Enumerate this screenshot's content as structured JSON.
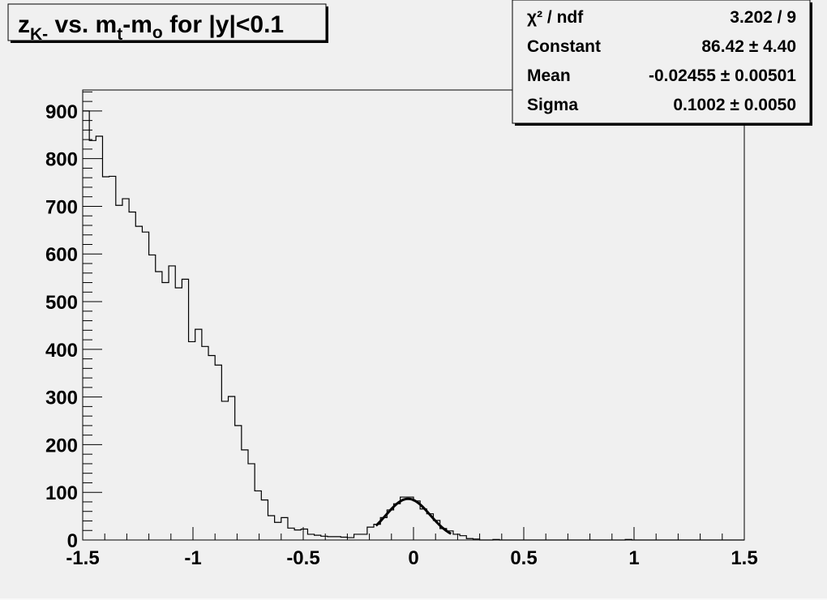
{
  "chart_data": {
    "type": "bar",
    "histogram_style": "step",
    "title": {
      "base1": "z",
      "sub1": "K-",
      "mid": " vs. m",
      "sub2": "t",
      "mid2": "-m",
      "sub3": "o",
      "tail": " for |y|<0.1"
    },
    "xlim": [
      -1.5,
      1.5
    ],
    "ylim": [
      0,
      944
    ],
    "bin_width": 0.03,
    "x_ticks": [
      "-1.5",
      "-1",
      "-0.5",
      "0",
      "0.5",
      "1",
      "1.5"
    ],
    "y_ticks": [
      "0",
      "100",
      "200",
      "300",
      "400",
      "500",
      "600",
      "700",
      "800",
      "900"
    ],
    "values": [
      900,
      838,
      847,
      762,
      763,
      702,
      716,
      688,
      658,
      646,
      598,
      563,
      540,
      575,
      529,
      547,
      416,
      442,
      406,
      387,
      367,
      291,
      301,
      240,
      189,
      160,
      103,
      84,
      51,
      37,
      47,
      25,
      21,
      23,
      12,
      10,
      8,
      7,
      7,
      6,
      5,
      12,
      12,
      27,
      33,
      47,
      63,
      76,
      90,
      90,
      82,
      65,
      55,
      41,
      24,
      19,
      12,
      9,
      3,
      2,
      0,
      0,
      1,
      0,
      0,
      0,
      0,
      0,
      0,
      0,
      0,
      0,
      0,
      0,
      0,
      0,
      0,
      0,
      0,
      0,
      0,
      0,
      1,
      0,
      0,
      0,
      0,
      0,
      0,
      0,
      0,
      0,
      0,
      0,
      0,
      0,
      0,
      0,
      0,
      0
    ],
    "fit": {
      "function": "gaus",
      "constant": 86.42,
      "mean": -0.02455,
      "sigma": 0.1002,
      "range": [
        -0.17,
        0.17
      ]
    },
    "grid": false,
    "legend": "none"
  },
  "stats": [
    {
      "label": "χ² / ndf",
      "value": "3.202 / 9"
    },
    {
      "label": "Constant",
      "value": "86.42 ± 4.40"
    },
    {
      "label": "Mean",
      "value": "-0.02455 ± 0.00501"
    },
    {
      "label": "Sigma",
      "value": "0.1002 ± 0.0050"
    }
  ],
  "colors": {
    "background": "#f0f0f0",
    "line": "#000000"
  }
}
